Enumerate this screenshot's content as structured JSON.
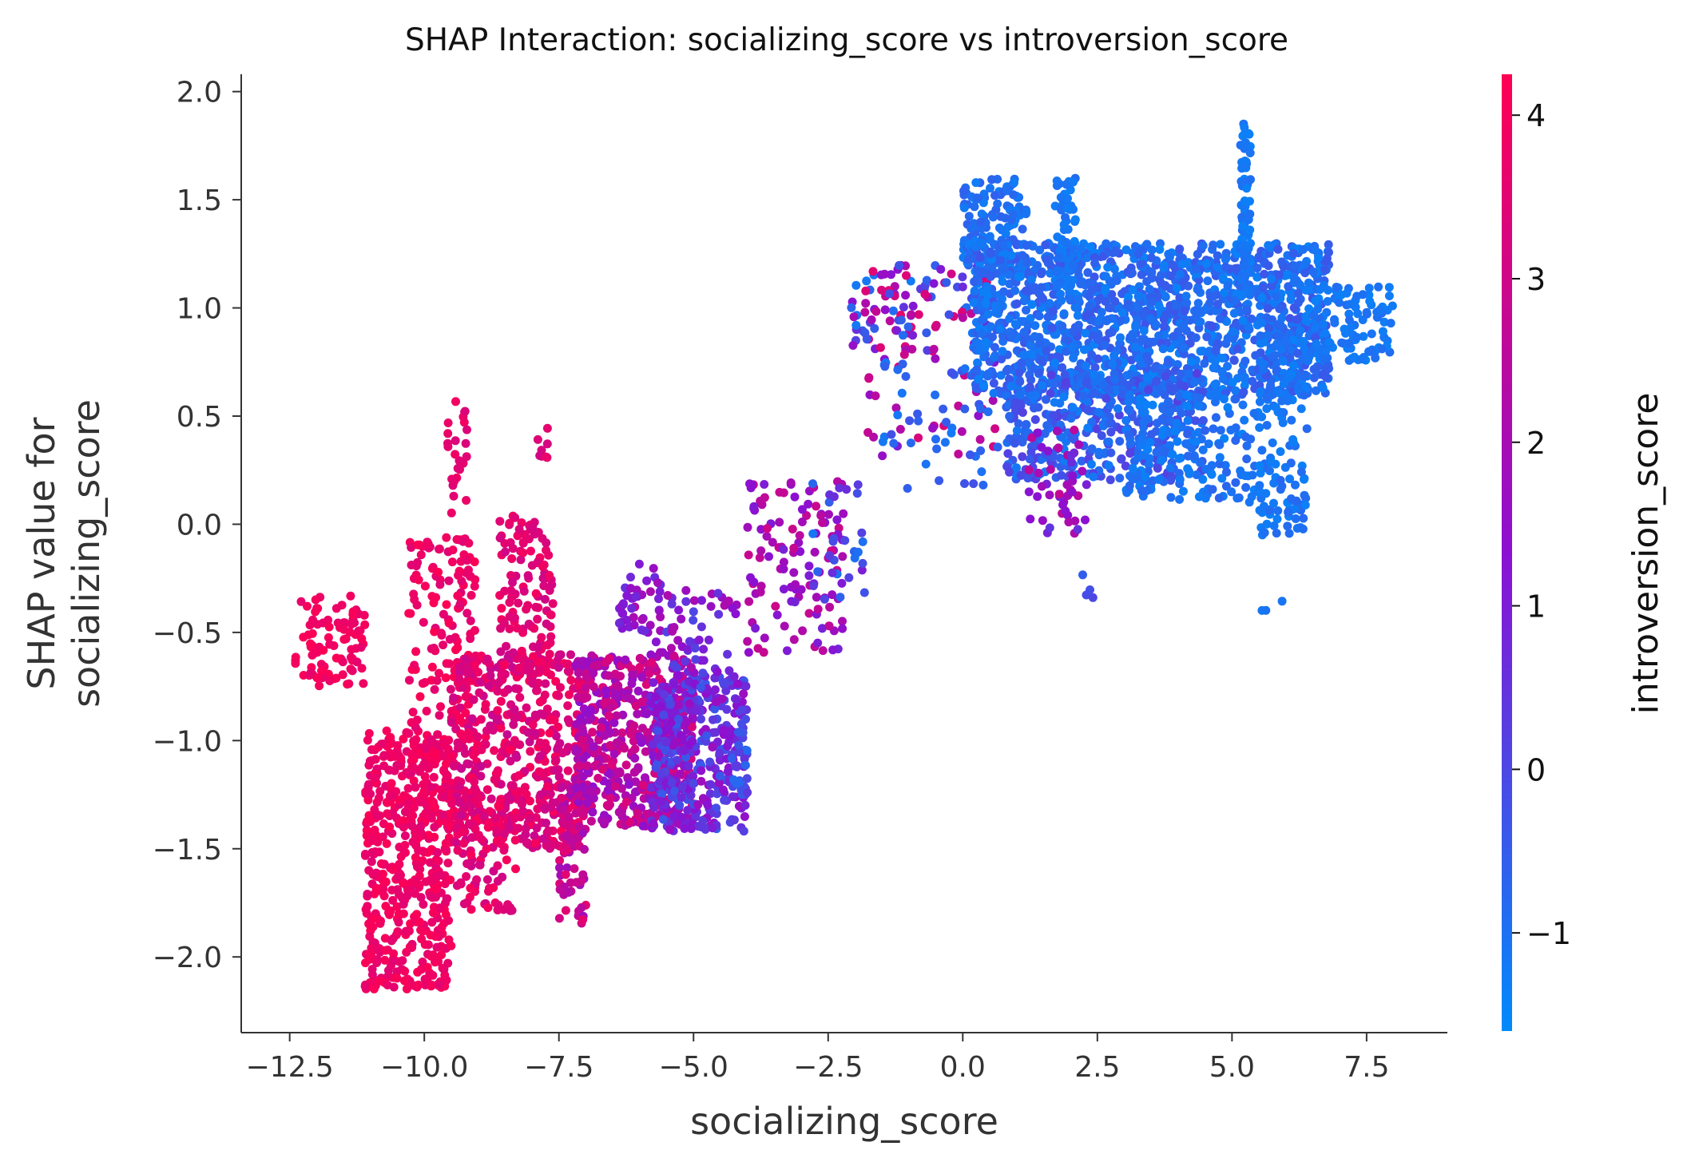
{
  "chart_data": {
    "type": "scatter",
    "title": "SHAP Interaction: socializing_score vs introversion_score",
    "xlabel": "socializing_score",
    "ylabel_lines": [
      "SHAP value for",
      "socializing_score"
    ],
    "xlim": [
      -13.4,
      9.0
    ],
    "ylim": [
      -2.35,
      2.08
    ],
    "xticks": [
      -12.5,
      -10.0,
      -7.5,
      -5.0,
      -2.5,
      0.0,
      2.5,
      5.0,
      7.5
    ],
    "xtick_labels": [
      "−12.5",
      "−10.0",
      "−7.5",
      "−5.0",
      "−2.5",
      "0.0",
      "2.5",
      "5.0",
      "7.5"
    ],
    "yticks": [
      -2.0,
      -1.5,
      -1.0,
      -0.5,
      0.0,
      0.5,
      1.0,
      1.5,
      2.0
    ],
    "ytick_labels": [
      "−2.0",
      "−1.5",
      "−1.0",
      "−0.5",
      "0.0",
      "0.5",
      "1.0",
      "1.5",
      "2.0"
    ],
    "grid": false,
    "colorbar": {
      "label": "introversion_score",
      "range": [
        -1.6,
        4.25
      ],
      "ticks": [
        -1,
        0,
        1,
        2,
        3,
        4
      ],
      "tick_labels": [
        "−1",
        "0",
        "1",
        "2",
        "3",
        "4"
      ],
      "color_low": "#008afb",
      "color_mid": "#8c10d1",
      "color_high": "#ff0052"
    },
    "clusters": [
      {
        "x": [
          -12.4,
          -11.1
        ],
        "y": [
          -0.75,
          -0.33
        ],
        "c": [
          3.6,
          4.2
        ],
        "n": 90
      },
      {
        "x": [
          -11.1,
          -9.5
        ],
        "y": [
          -2.15,
          -0.95
        ],
        "c": [
          3.5,
          4.2
        ],
        "n": 520
      },
      {
        "x": [
          -10.3,
          -9.0
        ],
        "y": [
          -1.4,
          -0.05
        ],
        "c": [
          3.4,
          4.2
        ],
        "n": 220
      },
      {
        "x": [
          -9.6,
          -9.2
        ],
        "y": [
          0.0,
          0.58
        ],
        "c": [
          3.3,
          4.0
        ],
        "n": 25
      },
      {
        "x": [
          -9.5,
          -7.0
        ],
        "y": [
          -1.5,
          -0.6
        ],
        "c": [
          2.8,
          4.1
        ],
        "n": 480
      },
      {
        "x": [
          -9.4,
          -8.3
        ],
        "y": [
          -1.8,
          -1.2
        ],
        "c": [
          3.0,
          4.1
        ],
        "n": 90
      },
      {
        "x": [
          -8.6,
          -7.6
        ],
        "y": [
          -0.7,
          0.05
        ],
        "c": [
          3.0,
          4.0
        ],
        "n": 130
      },
      {
        "x": [
          -7.9,
          -7.7
        ],
        "y": [
          0.3,
          0.5
        ],
        "c": [
          3.0,
          3.8
        ],
        "n": 8
      },
      {
        "x": [
          -7.5,
          -7.0
        ],
        "y": [
          -1.85,
          -1.2
        ],
        "c": [
          1.8,
          3.6
        ],
        "n": 70
      },
      {
        "x": [
          -7.2,
          -5.0
        ],
        "y": [
          -1.4,
          -0.6
        ],
        "c": [
          1.4,
          3.4
        ],
        "n": 520
      },
      {
        "x": [
          -6.4,
          -5.6
        ],
        "y": [
          -0.5,
          -0.15
        ],
        "c": [
          0.5,
          2.2
        ],
        "n": 40
      },
      {
        "x": [
          -5.8,
          -4.0
        ],
        "y": [
          -1.42,
          -0.7
        ],
        "c": [
          -0.5,
          1.8
        ],
        "n": 380
      },
      {
        "x": [
          -5.7,
          -4.2
        ],
        "y": [
          -0.7,
          -0.3
        ],
        "c": [
          0.0,
          2.2
        ],
        "n": 60
      },
      {
        "x": [
          -4.3,
          -4.0
        ],
        "y": [
          -1.25,
          -0.9
        ],
        "c": [
          -1.0,
          0.5
        ],
        "n": 25
      },
      {
        "x": [
          -4.0,
          -2.2
        ],
        "y": [
          -0.6,
          0.2
        ],
        "c": [
          0.8,
          3.0
        ],
        "n": 120
      },
      {
        "x": [
          -2.8,
          -1.8
        ],
        "y": [
          -0.35,
          0.2
        ],
        "c": [
          -1.2,
          1.0
        ],
        "n": 30
      },
      {
        "x": [
          -2.1,
          0.5
        ],
        "y": [
          0.8,
          1.2
        ],
        "c": [
          -1.3,
          3.8
        ],
        "n": 110
      },
      {
        "x": [
          -1.8,
          0.6
        ],
        "y": [
          0.3,
          0.8
        ],
        "c": [
          1.0,
          3.4
        ],
        "n": 30
      },
      {
        "x": [
          0.0,
          1.2
        ],
        "y": [
          1.15,
          1.6
        ],
        "c": [
          -1.3,
          -0.6
        ],
        "n": 140
      },
      {
        "x": [
          -1.5,
          1.5
        ],
        "y": [
          0.15,
          0.8
        ],
        "c": [
          -1.3,
          -0.2
        ],
        "n": 60
      },
      {
        "x": [
          0.2,
          6.8
        ],
        "y": [
          0.6,
          1.3
        ],
        "c": [
          -1.4,
          -0.3
        ],
        "n": 1500
      },
      {
        "x": [
          0.8,
          4.5
        ],
        "y": [
          0.2,
          0.7
        ],
        "c": [
          -1.3,
          0.2
        ],
        "n": 420
      },
      {
        "x": [
          1.2,
          2.3
        ],
        "y": [
          -0.05,
          0.45
        ],
        "c": [
          0.3,
          2.8
        ],
        "n": 45
      },
      {
        "x": [
          1.7,
          2.1
        ],
        "y": [
          1.1,
          1.6
        ],
        "c": [
          -1.4,
          -0.9
        ],
        "n": 60
      },
      {
        "x": [
          3.0,
          5.5
        ],
        "y": [
          0.1,
          0.6
        ],
        "c": [
          -1.4,
          -0.7
        ],
        "n": 160
      },
      {
        "x": [
          5.15,
          5.35
        ],
        "y": [
          1.05,
          1.87
        ],
        "c": [
          -1.4,
          -0.9
        ],
        "n": 80
      },
      {
        "x": [
          5.5,
          6.4
        ],
        "y": [
          -0.05,
          0.9
        ],
        "c": [
          -1.4,
          -0.8
        ],
        "n": 140
      },
      {
        "x": [
          6.4,
          8.0
        ],
        "y": [
          0.75,
          1.1
        ],
        "c": [
          -1.4,
          -0.9
        ],
        "n": 100
      },
      {
        "x": [
          2.2,
          2.5
        ],
        "y": [
          -0.35,
          -0.2
        ],
        "c": [
          -0.8,
          0.0
        ],
        "n": 4
      },
      {
        "x": [
          5.5,
          6.3
        ],
        "y": [
          -0.42,
          -0.35
        ],
        "c": [
          -1.2,
          -0.6
        ],
        "n": 3
      }
    ]
  }
}
